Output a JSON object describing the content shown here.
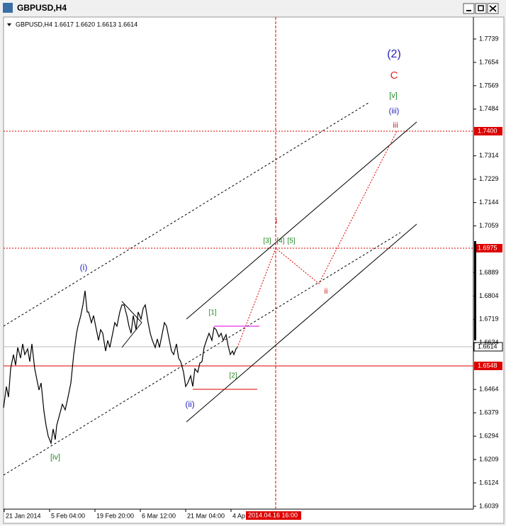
{
  "window": {
    "title": "GBPUSD,H4"
  },
  "chart_header": "GBPUSD,H4  1.6617 1.6620 1.6613 1.6614",
  "price_axis": [
    1.7739,
    1.7654,
    1.7569,
    1.7484,
    1.7314,
    1.7229,
    1.7144,
    1.7059,
    1.6889,
    1.6804,
    1.6719,
    1.6634,
    1.6464,
    1.6379,
    1.6294,
    1.6209,
    1.6124,
    1.6039
  ],
  "price_tags": [
    "1.7400",
    "1.6975",
    "1.6614",
    "1.6548"
  ],
  "time_axis": [
    "21 Jan 2014",
    "5 Feb 04:00",
    "19 Feb 20:00",
    "6 Mar 12:00",
    "21 Mar 04:00",
    "4 Ap"
  ],
  "cursor_time": "2014.04.16 16:00",
  "wave_labels": [
    "(2)",
    "C",
    "[v]",
    "(iii)",
    "iii",
    "i",
    "[3]",
    "[4]",
    "[5]",
    "(i)",
    "ii",
    "[1]",
    "[2]",
    "(ii)",
    "[iv]"
  ]
}
